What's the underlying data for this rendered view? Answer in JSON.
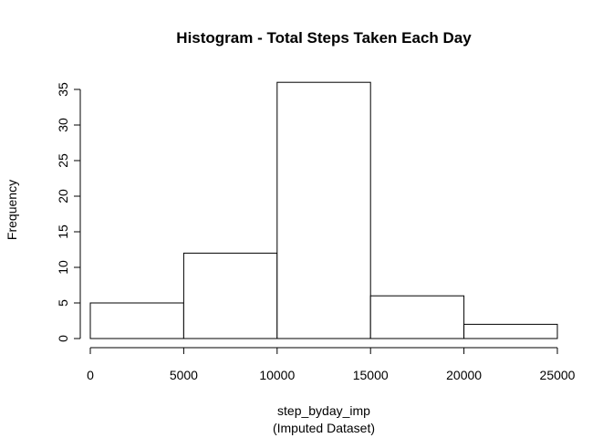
{
  "chart_data": {
    "type": "bar",
    "title": "Histogram - Total Steps Taken Each Day",
    "xlabel": "step_byday_imp",
    "xlabel_sub": "(Imputed Dataset)",
    "ylabel": "Frequency",
    "bins": [
      {
        "from": 0,
        "to": 5000,
        "count": 5
      },
      {
        "from": 5000,
        "to": 10000,
        "count": 12
      },
      {
        "from": 10000,
        "to": 15000,
        "count": 36
      },
      {
        "from": 15000,
        "to": 20000,
        "count": 6
      },
      {
        "from": 20000,
        "to": 25000,
        "count": 2
      }
    ],
    "xlim": [
      0,
      25000
    ],
    "ylim": [
      0,
      35
    ],
    "x_ticks": [
      0,
      5000,
      10000,
      15000,
      20000,
      25000
    ],
    "y_ticks": [
      0,
      5,
      10,
      15,
      20,
      25,
      30,
      35
    ],
    "grid": false,
    "bar_fill": "#ffffff",
    "bar_stroke": "#000000"
  }
}
